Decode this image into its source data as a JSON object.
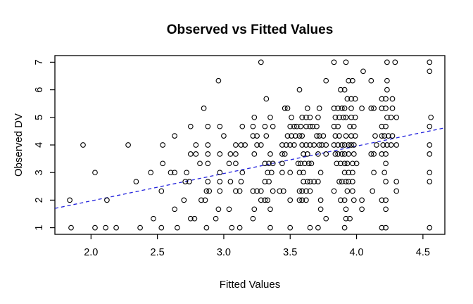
{
  "chart_data": {
    "type": "scatter",
    "title": "Observed vs Fitted Values",
    "xlabel": "Fitted Values",
    "ylabel": "Observed DV",
    "x_ticks": [
      2.0,
      2.5,
      3.0,
      3.5,
      4.0,
      4.5
    ],
    "x_tick_labels": [
      "2.0",
      "2.5",
      "3.0",
      "3.5",
      "4.0",
      "4.5"
    ],
    "y_ticks": [
      1,
      2,
      3,
      4,
      5,
      6,
      7
    ],
    "y_tick_labels": [
      "1",
      "2",
      "3",
      "4",
      "5",
      "6",
      "7"
    ],
    "xlim": [
      1.728,
      4.665
    ],
    "ylim": [
      0.76,
      7.24
    ],
    "grid": false,
    "legend_position": "none",
    "point_style": "open-circle",
    "point_color": "#000000",
    "axis_color": "#000000",
    "background_color": "#ffffff",
    "trend_line": {
      "description": "dashed blue identity line (observed = fitted)",
      "style": "dashed",
      "color": "#2222dd",
      "x1": 1.728,
      "y1": 1.7,
      "x2": 4.665,
      "y2": 4.62
    },
    "rows": [
      {
        "y": 7.0,
        "x": [
          3.28,
          3.83,
          3.92,
          4.23,
          4.29,
          4.55
        ]
      },
      {
        "y": 6.67,
        "x": [
          4.05,
          4.55
        ]
      },
      {
        "y": 6.33,
        "x": [
          2.96,
          3.77,
          3.94,
          3.97,
          4.11,
          4.23
        ]
      },
      {
        "y": 6.0,
        "x": [
          3.57,
          3.88,
          3.91,
          4.23
        ]
      },
      {
        "y": 5.67,
        "x": [
          3.32,
          3.93,
          3.96,
          3.99,
          4.19,
          4.22,
          4.27
        ]
      },
      {
        "y": 5.33,
        "x": [
          2.85,
          3.46,
          3.48,
          3.63,
          3.72,
          3.83,
          3.86,
          3.89,
          3.91,
          3.96,
          4.04,
          4.11,
          4.13,
          4.19,
          4.22,
          4.27
        ]
      },
      {
        "y": 5.0,
        "x": [
          3.23,
          3.35,
          3.51,
          3.59,
          3.62,
          3.65,
          3.71,
          3.84,
          3.87,
          3.9,
          3.92,
          3.96,
          3.99,
          4.23,
          4.26,
          4.3,
          4.56
        ]
      },
      {
        "y": 4.67,
        "x": [
          2.75,
          2.88,
          2.97,
          3.14,
          3.22,
          3.31,
          3.37,
          3.5,
          3.53,
          3.55,
          3.58,
          3.62,
          3.65,
          3.67,
          3.7,
          3.83,
          3.86,
          3.95,
          3.98,
          4.19,
          4.22,
          4.55
        ]
      },
      {
        "y": 4.33,
        "x": [
          2.63,
          3.0,
          3.22,
          3.25,
          3.32,
          3.48,
          3.51,
          3.54,
          3.57,
          3.59,
          3.7,
          3.72,
          3.75,
          3.84,
          3.87,
          3.92,
          3.96,
          3.99,
          4.14,
          4.19,
          4.21,
          4.24,
          4.27
        ]
      },
      {
        "y": 4.0,
        "x": [
          1.94,
          2.28,
          2.54,
          2.79,
          2.88,
          3.09,
          3.13,
          3.16,
          3.25,
          3.28,
          3.44,
          3.47,
          3.5,
          3.53,
          3.59,
          3.62,
          3.65,
          3.68,
          3.72,
          3.74,
          3.77,
          3.83,
          3.86,
          3.89,
          3.91,
          3.94,
          3.96,
          3.98,
          4.15,
          4.2,
          4.23,
          4.26,
          4.3,
          4.55
        ]
      },
      {
        "y": 3.67,
        "x": [
          2.75,
          2.79,
          2.88,
          2.97,
          3.05,
          3.09,
          3.23,
          3.35,
          3.44,
          3.46,
          3.6,
          3.63,
          3.71,
          3.77,
          3.84,
          3.86,
          3.89,
          3.91,
          3.94,
          3.98,
          4.11,
          4.13,
          4.19,
          4.22,
          4.55
        ]
      },
      {
        "y": 3.33,
        "x": [
          2.54,
          2.82,
          2.88,
          3.04,
          3.09,
          3.31,
          3.34,
          3.37,
          3.44,
          3.56,
          3.58,
          3.61,
          3.64,
          3.66,
          3.85,
          3.88,
          3.91,
          3.93,
          3.97,
          4.0,
          4.22
        ]
      },
      {
        "y": 3.0,
        "x": [
          2.03,
          2.45,
          2.6,
          2.63,
          2.72,
          2.97,
          3.14,
          3.33,
          3.36,
          3.44,
          3.5,
          3.57,
          3.6,
          3.73,
          3.91,
          3.94,
          3.97,
          4.13,
          4.21,
          4.55
        ]
      },
      {
        "y": 2.67,
        "x": [
          2.34,
          2.71,
          2.74,
          2.88,
          2.97,
          3.05,
          3.13,
          3.31,
          3.34,
          3.6,
          3.63,
          3.65,
          3.68,
          3.71,
          3.87,
          3.89,
          3.92,
          3.94,
          3.97,
          4.22,
          4.3,
          4.55
        ]
      },
      {
        "y": 2.33,
        "x": [
          2.53,
          2.87,
          2.89,
          2.97,
          3.09,
          3.12,
          3.22,
          3.25,
          3.28,
          3.37,
          3.42,
          3.45,
          3.57,
          3.59,
          3.62,
          3.65,
          3.83,
          3.93,
          3.97,
          4.12,
          4.3
        ]
      },
      {
        "y": 2.0,
        "x": [
          1.84,
          2.12,
          2.7,
          2.83,
          2.86,
          3.28,
          3.31,
          3.33,
          3.5,
          3.57,
          3.59,
          3.62,
          3.73,
          3.88,
          3.91,
          3.98,
          4.04,
          4.19,
          4.22
        ]
      },
      {
        "y": 1.67,
        "x": [
          2.63,
          2.96,
          3.04,
          3.23,
          3.35,
          3.73,
          3.92,
          4.04,
          4.22
        ]
      },
      {
        "y": 1.33,
        "x": [
          2.47,
          2.75,
          2.78,
          2.94,
          3.22,
          3.77,
          3.92,
          3.95
        ]
      },
      {
        "y": 1.0,
        "x": [
          1.85,
          2.03,
          2.11,
          2.19,
          2.37,
          2.53,
          2.65,
          2.87,
          3.06,
          3.12,
          3.35,
          3.5,
          3.65,
          3.71,
          3.91,
          4.19,
          4.22,
          4.55
        ]
      }
    ]
  }
}
